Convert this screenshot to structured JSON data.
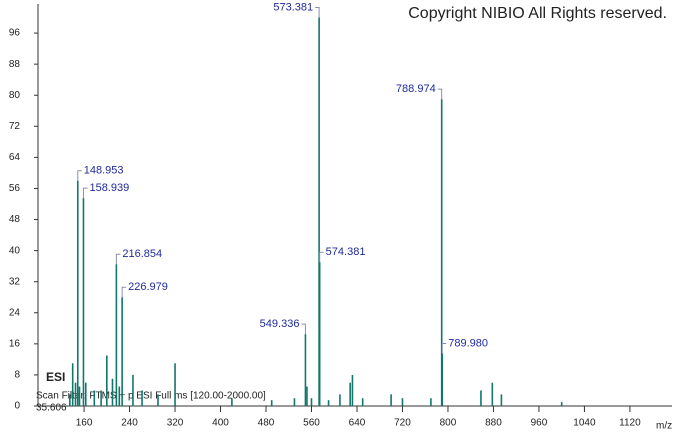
{
  "chart_data": {
    "type": "stem",
    "copyright": "Copyright NIBIO All Rights reserved.",
    "ionization": "ESI",
    "scan_filter": "Scan Filter: FTMS + p ESI Full ms [120.00-2000.00]",
    "retention_time": "35.606",
    "x_label": "m/z",
    "series": [
      {
        "color": "#12766a",
        "label_color": "#1f2a9c",
        "x": [
          148.953,
          158.939,
          216.854,
          226.979,
          549.336,
          573.381,
          574.381,
          788.974,
          789.98
        ],
        "x_labels": [
          "148.953",
          "158.939",
          "216.854",
          "226.979",
          "549.336",
          "573.381",
          "574.381",
          "788.974",
          "789.980"
        ],
        "values": [
          58,
          53.5,
          36.5,
          28,
          18.5,
          100,
          37,
          79,
          13.5
        ]
      },
      {
        "color": "#12766a",
        "x": [
          135,
          140,
          145,
          152,
          163,
          178,
          190,
          200,
          210,
          222,
          246,
          262,
          290,
          320,
          420,
          490,
          530,
          552,
          560,
          590,
          610,
          628,
          632,
          650,
          700,
          720,
          770,
          858,
          878,
          894,
          1000
        ],
        "values": [
          3,
          11,
          6,
          5,
          6,
          4,
          4,
          13,
          7,
          5,
          8,
          4,
          3,
          11,
          2,
          1.5,
          2,
          5,
          2,
          1.5,
          3,
          6,
          8,
          2,
          3,
          2,
          2,
          4,
          6,
          3,
          1
        ]
      }
    ],
    "xlim": [
      79,
      1194
    ],
    "ylim": [
      0,
      104
    ],
    "xticks": [
      160,
      240,
      320,
      400,
      480,
      560,
      640,
      720,
      800,
      880,
      960,
      1040,
      1120
    ],
    "yticks": [
      0,
      8,
      16,
      24,
      32,
      40,
      48,
      56,
      64,
      72,
      80,
      88,
      96
    ]
  }
}
